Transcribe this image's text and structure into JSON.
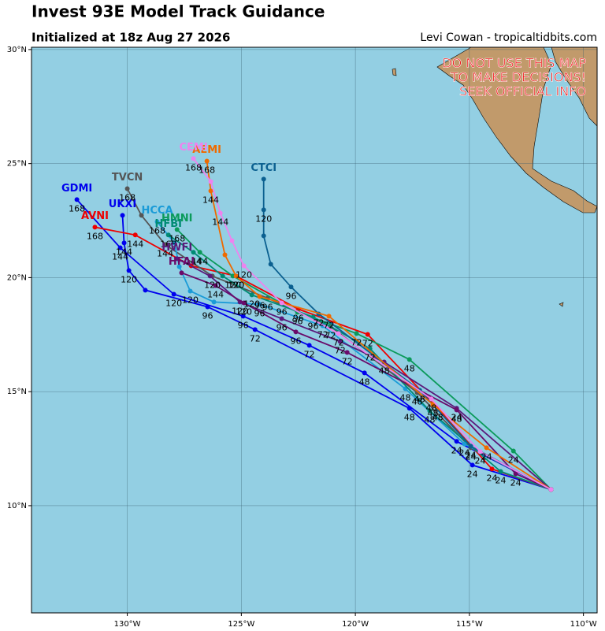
{
  "chart_data": {
    "type": "track_map",
    "title": "Invest 93E Model Track Guidance",
    "subtitle": "Initialized at 18z Aug 27 2026",
    "credit": "Levi Cowan - tropicaltidbits.com",
    "warning": [
      "DO NOT USE THIS MAP",
      "TO MAKE DECISIONS!",
      "SEEK OFFICIAL INFO"
    ],
    "xlim": [
      -134.2,
      -109.4
    ],
    "ylim": [
      5.3,
      30.1
    ],
    "xticks": [
      {
        "value": -130,
        "label": "130°W"
      },
      {
        "value": -125,
        "label": "125°W"
      },
      {
        "value": -120,
        "label": "120°W"
      },
      {
        "value": -115,
        "label": "115°W"
      },
      {
        "value": -110,
        "label": "110°W"
      }
    ],
    "yticks": [
      {
        "value": 10,
        "label": "10°N"
      },
      {
        "value": 15,
        "label": "15°N"
      },
      {
        "value": 20,
        "label": "20°N"
      },
      {
        "value": 25,
        "label": "25°N"
      },
      {
        "value": 30,
        "label": "30°N"
      }
    ],
    "grid": true,
    "series": [
      {
        "name": "GDMI",
        "color": "#0000ee",
        "x": [
          -111.42,
          -115.56,
          -119.6,
          -122.02,
          -124.92,
          -127.96,
          -130.31,
          -132.21
        ],
        "y": [
          10.71,
          12.82,
          15.82,
          17.03,
          18.31,
          19.27,
          21.31,
          23.42
        ],
        "hours": [
          null,
          24,
          48,
          72,
          96,
          120,
          144,
          168
        ]
      },
      {
        "name": "UKXI",
        "color": "#0000ee",
        "x": [
          -111.42,
          -114.87,
          -117.63,
          -124.4,
          -126.48,
          -129.21,
          -129.93,
          -130.14,
          -130.21
        ],
        "y": [
          10.71,
          11.78,
          14.27,
          17.72,
          18.72,
          19.45,
          20.31,
          21.52,
          22.73
        ],
        "hours": [
          null,
          24,
          48,
          72,
          96,
          null,
          120,
          144,
          null
        ]
      },
      {
        "name": "AVNI",
        "color": "#ee0000",
        "x": [
          -111.42,
          -114.01,
          -116.39,
          -119.46,
          -122.5,
          -125.23,
          -127.2,
          -129.65,
          -131.42
        ],
        "y": [
          10.71,
          11.61,
          14.27,
          17.51,
          18.62,
          20.07,
          20.52,
          21.87,
          22.21
        ],
        "hours": [
          null,
          24,
          48,
          72,
          96,
          120,
          null,
          144,
          168
        ]
      },
      {
        "name": "TVCN",
        "color": "#555555",
        "x": [
          -111.42,
          -114.94,
          -117.29,
          -121.09,
          -123.85,
          -126.27,
          -128.34,
          -129.38,
          -130.0
        ],
        "y": [
          10.71,
          12.54,
          14.96,
          17.86,
          19.1,
          20.07,
          21.45,
          22.73,
          23.9
        ],
        "hours": [
          null,
          24,
          48,
          72,
          96,
          120,
          144,
          null,
          168
        ]
      },
      {
        "name": "HCCA",
        "color": "#1a9bd7",
        "x": [
          -111.42,
          -115.22,
          -117.81,
          -121.43,
          -124.2,
          -126.2,
          -127.24,
          -127.72,
          -127.93,
          -128.69
        ],
        "y": [
          10.71,
          12.71,
          15.13,
          17.89,
          18.83,
          18.93,
          19.41,
          20.48,
          21.52,
          22.45
        ],
        "hours": [
          null,
          24,
          48,
          72,
          96,
          null,
          120,
          null,
          null,
          168
        ]
      },
      {
        "name": "HMNI",
        "color": "#0b9a5a",
        "x": [
          -111.42,
          -113.07,
          -117.63,
          -119.95,
          -122.54,
          -125.37,
          -126.82,
          -127.82
        ],
        "y": [
          10.71,
          12.4,
          16.41,
          17.55,
          18.48,
          20.07,
          21.11,
          22.11
        ],
        "hours": [
          null,
          24,
          48,
          72,
          96,
          120,
          144,
          168
        ]
      },
      {
        "name": "HFBI",
        "color": "#008b74",
        "x": [
          -111.42,
          -113.63,
          -116.74,
          -119.36,
          -121.85,
          -124.54,
          -125.82,
          -127.1,
          -128.2
        ],
        "y": [
          10.71,
          11.5,
          14.16,
          16.89,
          18.27,
          19.24,
          20.07,
          21.11,
          21.87
        ],
        "hours": [
          null,
          24,
          48,
          72,
          96,
          120,
          null,
          144,
          168
        ]
      },
      {
        "name": "HWFI",
        "color": "#5b1a7a",
        "x": [
          -111.42,
          -115.56,
          -118.74,
          -120.67,
          -123.23,
          -125.06,
          -126.37,
          -127.82
        ],
        "y": [
          10.71,
          14.27,
          16.3,
          17.2,
          18.2,
          18.93,
          20.07,
          20.83
        ],
        "hours": [
          null,
          24,
          48,
          72,
          96,
          120,
          null,
          null
        ]
      },
      {
        "name": "HFAI",
        "color": "#6a0a6a",
        "x": [
          -111.42,
          -112.97,
          -115.56,
          -120.36,
          -122.61,
          -124.89,
          -126.13,
          -127.62
        ],
        "y": [
          10.71,
          11.4,
          14.2,
          16.72,
          17.62,
          18.89,
          19.65,
          20.21
        ],
        "hours": [
          null,
          24,
          48,
          72,
          96,
          120,
          144,
          null
        ]
      },
      {
        "name": "CTCI",
        "color": "#0b6090",
        "x": [
          -111.42,
          -114.94,
          -117.18,
          -121.61,
          -122.82,
          -123.71,
          -124.02,
          -124.02,
          -124.02
        ],
        "y": [
          10.71,
          12.61,
          15.06,
          18.41,
          19.59,
          20.59,
          21.83,
          22.97,
          24.32
        ],
        "hours": [
          null,
          24,
          48,
          72,
          96,
          null,
          null,
          120,
          null
        ]
      },
      {
        "name": "AEMI",
        "color": "#ee6a00",
        "x": [
          -111.42,
          -114.25,
          -116.6,
          -121.16,
          -124.2,
          -125.23,
          -125.72,
          -126.34,
          -126.51
        ],
        "y": [
          10.71,
          12.54,
          14.44,
          18.31,
          19.17,
          20.07,
          21.0,
          23.8,
          25.11
        ],
        "hours": [
          null,
          24,
          48,
          72,
          96,
          120,
          null,
          144,
          168
        ]
      },
      {
        "name": "CEMI",
        "color": "#ee82ee",
        "x": [
          -111.42,
          -114.53,
          -116.67,
          -120.74,
          -123.23,
          -124.89,
          -125.41,
          -125.92,
          -126.34,
          -127.1
        ],
        "y": [
          10.71,
          12.37,
          14.68,
          17.55,
          18.89,
          20.52,
          21.62,
          22.83,
          24.21,
          25.22
        ],
        "hours": [
          null,
          24,
          48,
          72,
          96,
          120,
          null,
          144,
          null,
          168
        ]
      }
    ]
  }
}
